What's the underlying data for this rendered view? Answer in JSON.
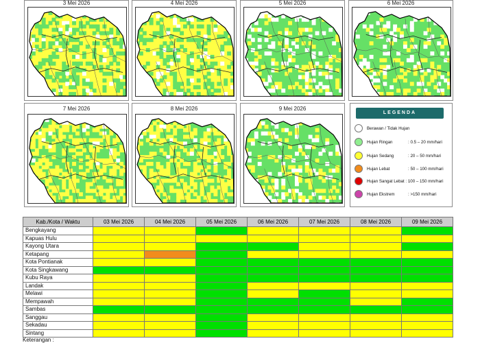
{
  "maps": [
    {
      "date": "3 Mei 2026",
      "dominant": "yellow"
    },
    {
      "date": "4 Mei 2026",
      "dominant": "yellow"
    },
    {
      "date": "5 Mei 2026",
      "dominant": "green"
    },
    {
      "date": "6 Mei 2026",
      "dominant": "green"
    },
    {
      "date": "7 Mei 2026",
      "dominant": "mixed"
    },
    {
      "date": "8 Mei 2026",
      "dominant": "mixed"
    },
    {
      "date": "9 Mei 2026",
      "dominant": "green"
    }
  ],
  "legend": {
    "title": "LEGENDA",
    "items": [
      {
        "label": "Berawan / Tidak Hujan",
        "range": "",
        "color": "#ffffff"
      },
      {
        "label": "Hujan Ringan",
        "range": ": 0.5 – 20 mm/hari",
        "color": "#90ee90"
      },
      {
        "label": "Hujan Sedang",
        "range": ": 20 – 50 mm/hari",
        "color": "#ffff33"
      },
      {
        "label": "Hujan Lebat",
        "range": ": 50 – 100 mm/hari",
        "color": "#f28c1c"
      },
      {
        "label": "Hujan Sangat Lebat : 100 – 150 mm/hari",
        "range": "",
        "color": "#e00000"
      },
      {
        "label": "Hujan Ekstrem",
        "range": ": >150 mm/hari",
        "color": "#cc44aa"
      }
    ]
  },
  "colors": {
    "Y": "#ffff00",
    "G": "#00e000",
    "O": "#f28c1c",
    "W": "#ffffff"
  },
  "table": {
    "header": [
      "Kab./Kota / Waktu",
      "03 Mei 2026",
      "04 Mei 2026",
      "05 Mei 2026",
      "06 Mei 2026",
      "07 Mei 2026",
      "08 Mei 2026",
      "09 Mei 2026"
    ],
    "rows": [
      {
        "name": "Bengkayang",
        "cells": [
          "Y",
          "Y",
          "G",
          "Y",
          "Y",
          "Y",
          "G"
        ]
      },
      {
        "name": "Kapuas Hulu",
        "cells": [
          "Y",
          "Y",
          "Y",
          "Y",
          "Y",
          "Y",
          "Y"
        ]
      },
      {
        "name": "Kayong Utara",
        "cells": [
          "Y",
          "Y",
          "G",
          "G",
          "Y",
          "Y",
          "G"
        ]
      },
      {
        "name": "Ketapang",
        "cells": [
          "Y",
          "O",
          "G",
          "Y",
          "Y",
          "Y",
          "Y"
        ]
      },
      {
        "name": "Kota Pontianak",
        "cells": [
          "Y",
          "Y",
          "G",
          "G",
          "G",
          "G",
          "G"
        ]
      },
      {
        "name": "Kota Singkawang",
        "cells": [
          "G",
          "G",
          "G",
          "G",
          "G",
          "G",
          "G"
        ]
      },
      {
        "name": "Kubu Raya",
        "cells": [
          "Y",
          "Y",
          "G",
          "G",
          "G",
          "G",
          "G"
        ]
      },
      {
        "name": "Landak",
        "cells": [
          "Y",
          "Y",
          "G",
          "Y",
          "Y",
          "Y",
          "Y"
        ]
      },
      {
        "name": "Melawi",
        "cells": [
          "Y",
          "Y",
          "G",
          "Y",
          "G",
          "Y",
          "Y"
        ]
      },
      {
        "name": "Mempawah",
        "cells": [
          "Y",
          "Y",
          "G",
          "G",
          "G",
          "Y",
          "G"
        ]
      },
      {
        "name": "Sambas",
        "cells": [
          "G",
          "G",
          "G",
          "G",
          "G",
          "G",
          "G"
        ]
      },
      {
        "name": "Sanggau",
        "cells": [
          "Y",
          "Y",
          "G",
          "Y",
          "Y",
          "Y",
          "Y"
        ]
      },
      {
        "name": "Sekadau",
        "cells": [
          "Y",
          "Y",
          "G",
          "Y",
          "Y",
          "Y",
          "Y"
        ]
      },
      {
        "name": "Sintang",
        "cells": [
          "Y",
          "Y",
          "G",
          "Y",
          "Y",
          "Y",
          "Y"
        ]
      }
    ]
  },
  "footer_note": "Keterangan :"
}
